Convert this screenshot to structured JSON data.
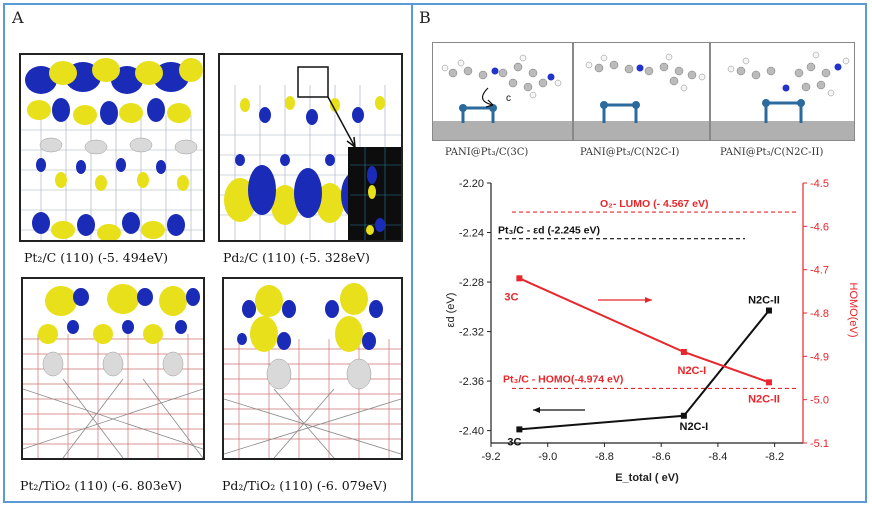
{
  "panel_a": {
    "letter": "A",
    "panels": [
      {
        "caption": "Pt₂/C (110) (-5. 494eV)"
      },
      {
        "caption": "Pd₂/C (110) (-5. 328eV)"
      },
      {
        "caption": "Pt₂/TiO₂ (110) (-6. 803eV)"
      },
      {
        "caption": "Pd₂/TiO₂ (110) (-6. 079eV)"
      }
    ]
  },
  "panel_b": {
    "letter": "B",
    "structures": [
      {
        "label": "PANI@Pt₃/C(3C)",
        "arrow_label": "c"
      },
      {
        "label": "PANI@Pt₃/C(N2C-I)"
      },
      {
        "label": "PANI@Pt₃/C(N2C-II)"
      }
    ]
  },
  "colors": {
    "border": "#5b9bd5",
    "black_series": "#111111",
    "red_series": "#e8262b",
    "yellow": "#e8e01a",
    "blue": "#1a2bb8"
  },
  "chart_data": {
    "type": "line",
    "xlabel": "E_total ( eV)",
    "ylabel_left": "εd (eV)",
    "ylabel_right": "HOMO(eV)",
    "xlim": [
      -9.2,
      -8.1
    ],
    "ylim_left": [
      -2.41,
      -2.2
    ],
    "ylim_right": [
      -5.1,
      -4.5
    ],
    "x_ticks": [
      "-9.2",
      "-9.0",
      "-8.8",
      "-8.6",
      "-8.4",
      "-8.2"
    ],
    "y_left_ticks": [
      "-2.20",
      "-2.24",
      "-2.28",
      "-2.32",
      "-2.36",
      "-2.40"
    ],
    "y_right_ticks": [
      "-4.5",
      "-4.6",
      "-4.7",
      "-4.8",
      "-4.9",
      "-5.0",
      "-5.1"
    ],
    "series": [
      {
        "axis": "left",
        "color": "#111111",
        "x": [
          -9.1,
          -8.52,
          -8.22
        ],
        "y": [
          -2.399,
          -2.388,
          -2.303
        ],
        "labels": [
          "3C",
          "N2C-I",
          "N2C-II"
        ]
      },
      {
        "axis": "right",
        "color": "#e8262b",
        "x": [
          -9.1,
          -8.52,
          -8.22
        ],
        "y": [
          -4.72,
          -4.89,
          -4.96
        ],
        "labels": [
          "3C",
          "N2C-I",
          "N2C-II"
        ]
      }
    ],
    "reference_lines": [
      {
        "axis": "right",
        "y": -4.567,
        "color": "#e8262b",
        "label": "O₂- LUMO (- 4.567 eV)"
      },
      {
        "axis": "left",
        "y": -2.245,
        "color": "#111111",
        "label": "Pt₃/C - εd (-2.245 eV)"
      },
      {
        "axis": "right",
        "y": -4.974,
        "color": "#e8262b",
        "label": "Pt₃/C - HOMO(-4.974 eV)"
      }
    ]
  }
}
